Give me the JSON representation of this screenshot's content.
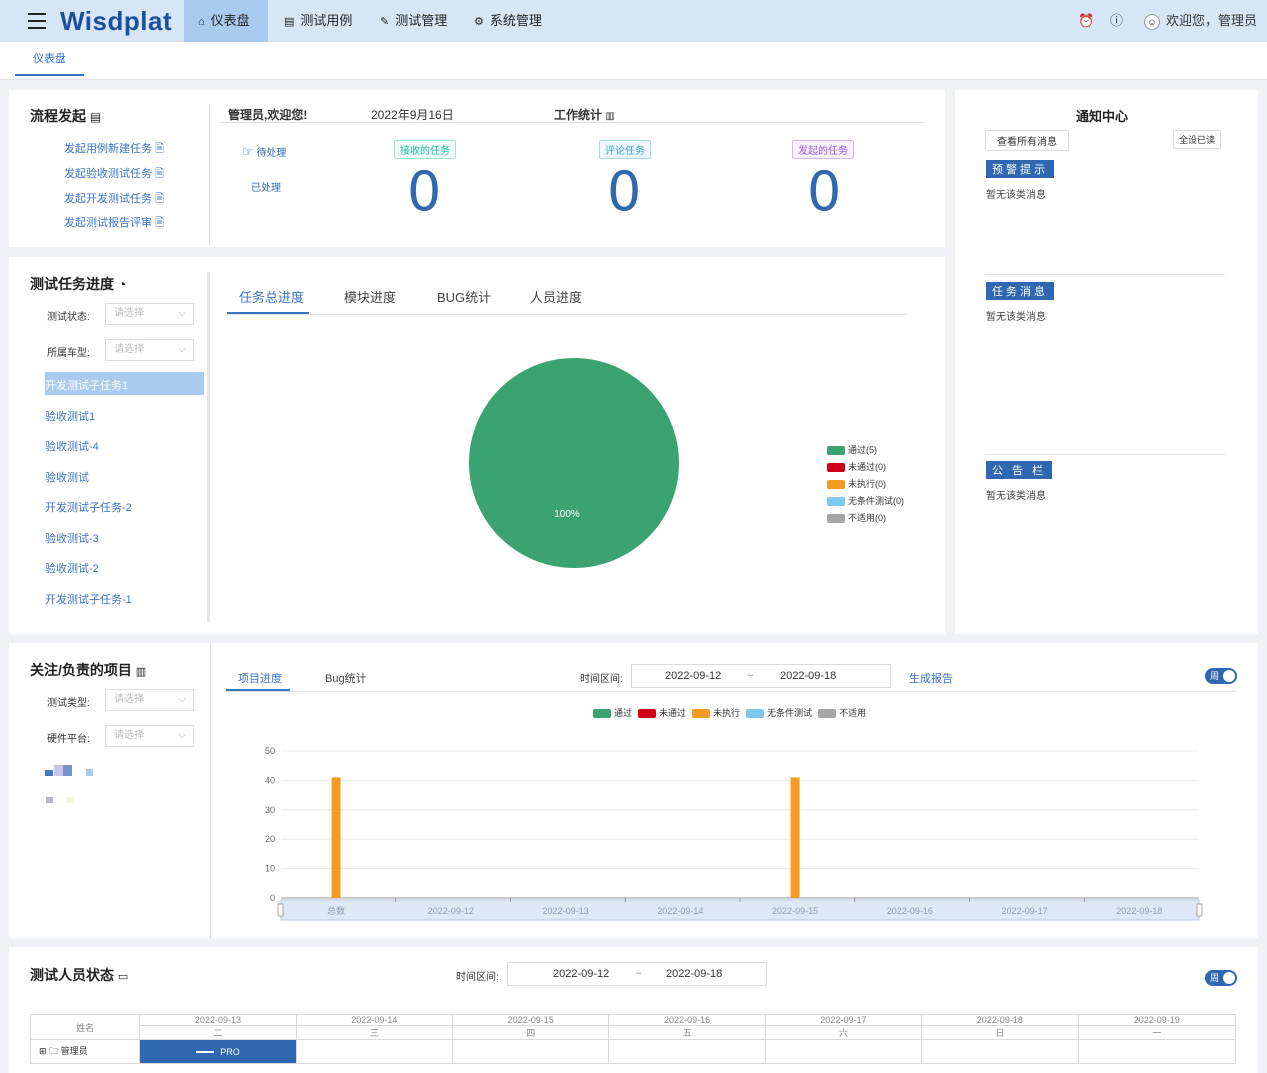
{
  "topbar": {
    "logo": "Wisdplat",
    "nav": [
      {
        "label": "仪表盘",
        "icon": "⌂"
      },
      {
        "label": "测试用例",
        "icon": "▤"
      },
      {
        "label": "测试管理",
        "icon": "✎"
      },
      {
        "label": "系统管理",
        "icon": "⚙"
      }
    ],
    "welcome": "欢迎您，管理员"
  },
  "tabs": {
    "current": "仪表盘"
  },
  "process": {
    "title": "流程发起",
    "links": [
      "发起用例新建任务",
      "发起验收测试任务",
      "发起开发测试任务",
      "发起测试报告评审"
    ]
  },
  "work": {
    "greeting": "管理员,欢迎您!",
    "date": "2022年9月16日",
    "stats_title": "工作统计",
    "pending": "待处理",
    "processed": "已处理",
    "cards": [
      {
        "tag": "接收的任务",
        "value": "0",
        "color": "#1fbfa0"
      },
      {
        "tag": "评论任务",
        "value": "0",
        "color": "#3aa3e0"
      },
      {
        "tag": "发起的任务",
        "value": "0",
        "color": "#9b59d6"
      }
    ]
  },
  "notify": {
    "title": "通知中心",
    "view_all": "查看所有消息",
    "mark_read": "全设已读",
    "sections": [
      {
        "badge": "预警提示",
        "empty": "暂无该类消息"
      },
      {
        "badge": "任务消息",
        "empty": "暂无该类消息"
      },
      {
        "badge": "公 告 栏",
        "empty": "暂无该类消息"
      }
    ]
  },
  "progress": {
    "title": "测试任务进度",
    "status_label": "测试状态:",
    "car_label": "所属车型:",
    "placeholder": "请选择",
    "tasks": [
      "开发测试子任务1",
      "验收测试1",
      "验收测试-4",
      "验收测试",
      "开发测试子任务-2",
      "验收测试-3",
      "验收测试-2",
      "开发测试子任务-1"
    ],
    "tabs": [
      "任务总进度",
      "模块进度",
      "BUG统计",
      "人员进度"
    ]
  },
  "pie_chart_data": {
    "type": "pie",
    "slices": [
      {
        "name": "通过(5)",
        "value": 5,
        "color": "#3ba272"
      },
      {
        "name": "未通过(0)",
        "value": 0,
        "color": "#d0021b"
      },
      {
        "name": "未执行(0)",
        "value": 0,
        "color": "#f39c23"
      },
      {
        "name": "无条件测试(0)",
        "value": 0,
        "color": "#7ec8f0"
      },
      {
        "name": "不适用(0)",
        "value": 0,
        "color": "#a6a6a6"
      }
    ],
    "center_label": "100%"
  },
  "projects": {
    "title": "关注/负责的项目",
    "type_label": "测试类型:",
    "hw_label": "硬件平台:",
    "placeholder": "请选择",
    "tabs": [
      "项目进度",
      "Bug统计"
    ],
    "range_label": "时间区间:",
    "start": "2022-09-12",
    "sep": "~",
    "end": "2022-09-18",
    "report": "生成报告",
    "toggle": "周"
  },
  "chart_data": {
    "type": "bar",
    "categories": [
      "总数",
      "2022-09-12",
      "2022-09-13",
      "2022-09-14",
      "2022-09-15",
      "2022-09-16",
      "2022-09-17",
      "2022-09-18"
    ],
    "series": [
      {
        "name": "通过",
        "color": "#3ba272",
        "values": [
          0,
          0,
          0,
          0,
          0,
          0,
          0,
          0
        ]
      },
      {
        "name": "未通过",
        "color": "#d0021b",
        "values": [
          0,
          0,
          0,
          0,
          0,
          0,
          0,
          0
        ]
      },
      {
        "name": "未执行",
        "color": "#f39c23",
        "values": [
          41,
          0,
          0,
          0,
          41,
          0,
          0,
          0
        ]
      },
      {
        "name": "无条件测试",
        "color": "#7ec8f0",
        "values": [
          0,
          0,
          0,
          0,
          0,
          0,
          0,
          0
        ]
      },
      {
        "name": "不适用",
        "color": "#a6a6a6",
        "values": [
          0,
          0,
          0,
          0,
          0,
          0,
          0,
          0
        ]
      }
    ],
    "ylim": [
      0,
      50
    ],
    "yticks": [
      0,
      10,
      20,
      30,
      40,
      50
    ],
    "legend": "top"
  },
  "staff": {
    "title": "测试人员状态",
    "range_label": "时间区间:",
    "start": "2022-09-12",
    "sep": "~",
    "end": "2022-09-18",
    "toggle": "周",
    "name_header": "姓名",
    "days": [
      {
        "date": "2022-09-13",
        "wd": "二"
      },
      {
        "date": "2022-09-14",
        "wd": "三"
      },
      {
        "date": "2022-09-15",
        "wd": "四"
      },
      {
        "date": "2022-09-16",
        "wd": "五"
      },
      {
        "date": "2022-09-17",
        "wd": "六"
      },
      {
        "date": "2022-09-18",
        "wd": "日"
      },
      {
        "date": "2022-09-19",
        "wd": "一"
      }
    ],
    "row_name": "管理员",
    "bar_label": "PRO"
  }
}
